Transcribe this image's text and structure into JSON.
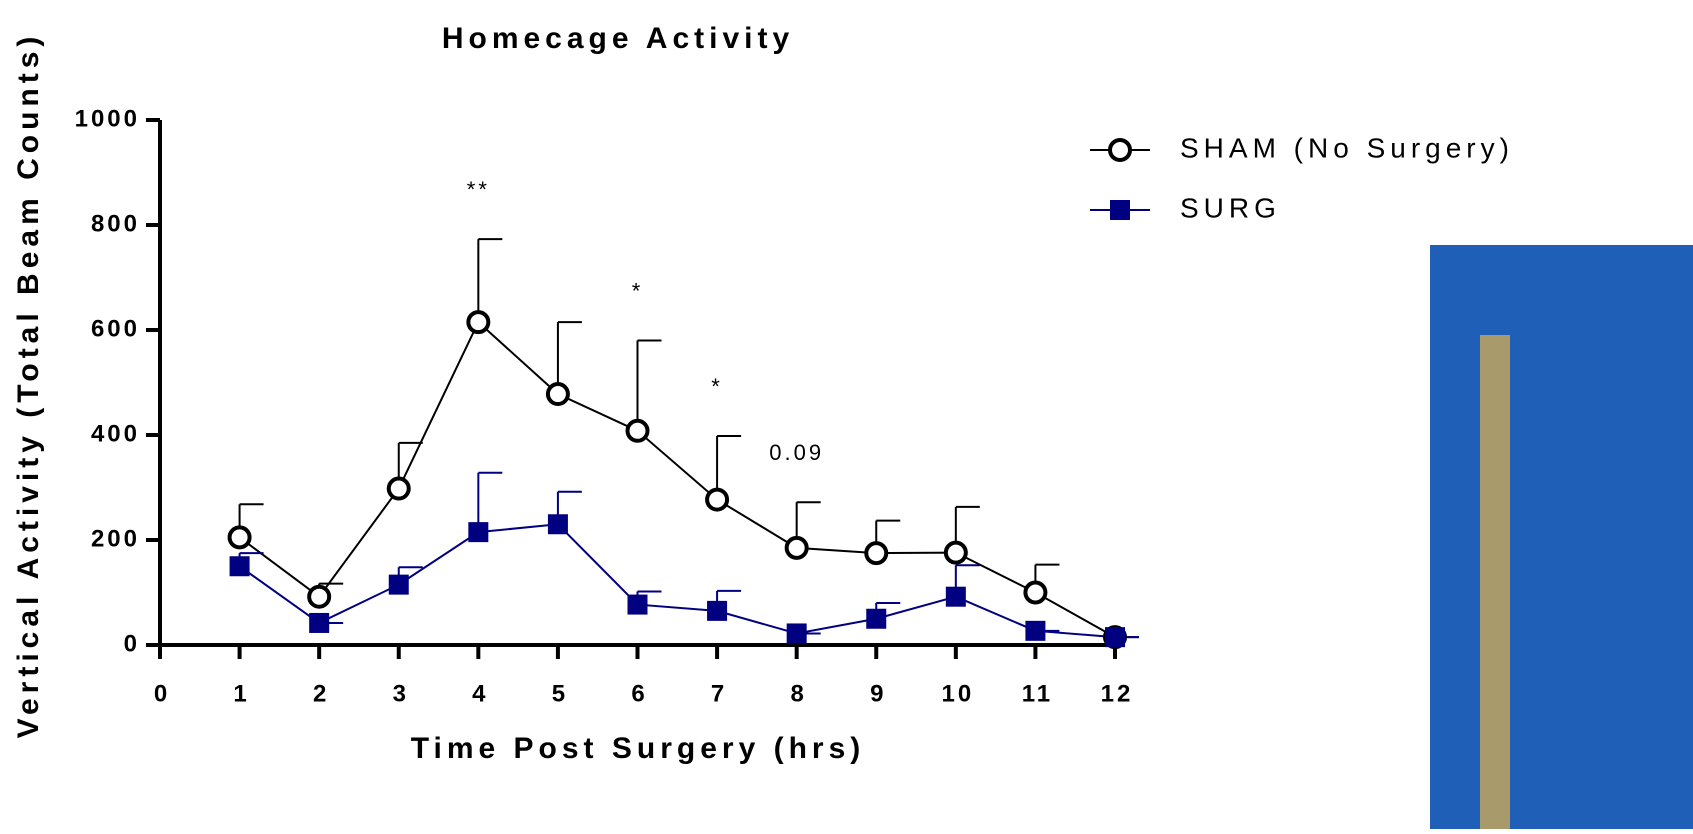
{
  "chart_data": {
    "type": "line",
    "title": "Homecage Activity",
    "x_label": "Time Post Surgery (hrs)",
    "y_label": "Vertical Activity (Total Beam Counts)",
    "x": [
      1,
      2,
      3,
      4,
      5,
      6,
      7,
      8,
      9,
      10,
      11,
      12
    ],
    "xlim": [
      0,
      12
    ],
    "xticks": [
      0,
      1,
      2,
      3,
      4,
      5,
      6,
      7,
      8,
      9,
      10,
      11,
      12
    ],
    "ylim": [
      0,
      1000
    ],
    "yticks": [
      0,
      200,
      400,
      600,
      800,
      1000
    ],
    "series": [
      {
        "name": "SHAM (No Surgery)",
        "color": "#000000",
        "marker": "circle",
        "values": [
          205,
          92,
          298,
          615,
          478,
          408,
          277,
          185,
          175,
          176,
          100,
          15
        ],
        "errors": [
          63,
          25,
          87,
          158,
          137,
          172,
          121,
          87,
          62,
          87,
          53,
          0
        ]
      },
      {
        "name": "SURG",
        "color": "#000080",
        "marker": "square",
        "values": [
          150,
          42,
          115,
          215,
          230,
          77,
          65,
          22,
          50,
          92,
          27,
          15
        ],
        "errors": [
          25,
          0,
          33,
          113,
          62,
          25,
          38,
          0,
          30,
          60,
          0,
          0
        ]
      }
    ],
    "annotations": [
      {
        "text": "**",
        "x": 4
      },
      {
        "text": "*",
        "x": 6
      },
      {
        "text": "*",
        "x": 7
      },
      {
        "text": "0.09",
        "x": 8
      }
    ],
    "legend": "upper right"
  }
}
